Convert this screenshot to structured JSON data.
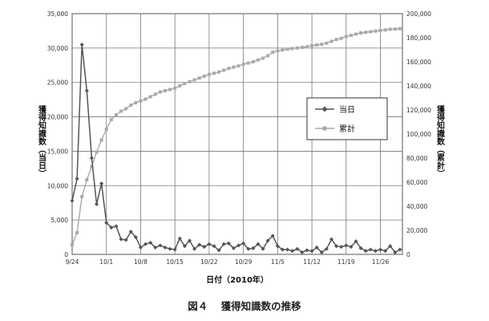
{
  "chart_data": {
    "type": "line",
    "x_tick_labels": [
      "9/24",
      "10/1",
      "10/8",
      "10/15",
      "10/22",
      "10/29",
      "11/5",
      "11/12",
      "11/19",
      "11/26"
    ],
    "xlabel": "日付（2010年）",
    "y_left": {
      "label": "獲得知識数（当日）",
      "range": [
        0,
        35000
      ],
      "tick_labels": [
        "0",
        "5,000",
        "10,000",
        "15,000",
        "20,000",
        "25,000",
        "30,000",
        "35,000"
      ]
    },
    "y_right": {
      "label": "獲得知識数（累計）",
      "range": [
        0,
        200000
      ],
      "tick_labels": [
        "0",
        "20,000",
        "40,000",
        "60,000",
        "80,000",
        "100,000",
        "120,000",
        "140,000",
        "160,000",
        "180,000",
        "200,000"
      ]
    },
    "grid": true,
    "legend_position": "right-center",
    "series": [
      {
        "name": "当日",
        "axis": "left",
        "color": "#555555",
        "marker": "diamond",
        "x": [
          "9/24",
          "9/25",
          "9/26",
          "9/27",
          "9/28",
          "9/29",
          "9/30",
          "10/1",
          "10/2",
          "10/3",
          "10/4",
          "10/5",
          "10/6",
          "10/7",
          "10/8",
          "10/9",
          "10/10",
          "10/11",
          "10/12",
          "10/13",
          "10/14",
          "10/15",
          "10/16",
          "10/17",
          "10/18",
          "10/19",
          "10/20",
          "10/21",
          "10/22",
          "10/23",
          "10/24",
          "10/25",
          "10/26",
          "10/27",
          "10/28",
          "10/29",
          "10/30",
          "10/31",
          "11/1",
          "11/2",
          "11/3",
          "11/4",
          "11/5",
          "11/6",
          "11/7",
          "11/8",
          "11/9",
          "11/10",
          "11/11",
          "11/12",
          "11/13",
          "11/14",
          "11/15",
          "11/16",
          "11/17",
          "11/18",
          "11/19",
          "11/20",
          "11/21",
          "11/22",
          "11/23",
          "11/24",
          "11/25",
          "11/26",
          "11/27",
          "11/28",
          "11/29",
          "11/30"
        ],
        "values": [
          7800,
          11000,
          30500,
          23800,
          14000,
          7300,
          10300,
          4600,
          3900,
          4100,
          2200,
          2100,
          3300,
          2500,
          1000,
          1500,
          1700,
          1000,
          1300,
          1000,
          800,
          700,
          2300,
          1200,
          2000,
          800,
          1400,
          1100,
          1500,
          1200,
          600,
          1500,
          1600,
          900,
          1300,
          1600,
          800,
          900,
          1500,
          800,
          2000,
          2700,
          1200,
          700,
          700,
          500,
          800,
          300,
          600,
          500,
          1000,
          300,
          800,
          2200,
          1200,
          1100,
          1300,
          1100,
          1900,
          900,
          500,
          700,
          500,
          700,
          500,
          1200,
          300,
          700
        ]
      },
      {
        "name": "累計",
        "axis": "right",
        "color": "#aaaaaa",
        "marker": "square",
        "x": [
          "9/24",
          "9/25",
          "9/26",
          "9/27",
          "9/28",
          "9/29",
          "9/30",
          "10/1",
          "10/2",
          "10/3",
          "10/4",
          "10/5",
          "10/6",
          "10/7",
          "10/8",
          "10/9",
          "10/10",
          "10/11",
          "10/12",
          "10/13",
          "10/14",
          "10/15",
          "10/16",
          "10/17",
          "10/18",
          "10/19",
          "10/20",
          "10/21",
          "10/22",
          "10/23",
          "10/24",
          "10/25",
          "10/26",
          "10/27",
          "10/28",
          "10/29",
          "10/30",
          "10/31",
          "11/1",
          "11/2",
          "11/3",
          "11/4",
          "11/5",
          "11/6",
          "11/7",
          "11/8",
          "11/9",
          "11/10",
          "11/11",
          "11/12",
          "11/13",
          "11/14",
          "11/15",
          "11/16",
          "11/17",
          "11/18",
          "11/19",
          "11/20",
          "11/21",
          "11/22",
          "11/23",
          "11/24",
          "11/25",
          "11/26",
          "11/27",
          "11/28",
          "11/29",
          "11/30"
        ],
        "values": [
          8000,
          18000,
          48000,
          62000,
          73000,
          85000,
          95000,
          104000,
          112000,
          116000,
          119000,
          121000,
          124000,
          126000,
          127500,
          129000,
          131000,
          133000,
          135000,
          136000,
          137000,
          138000,
          140000,
          142000,
          143500,
          145000,
          146500,
          148000,
          149500,
          150500,
          151500,
          153000,
          154500,
          155500,
          156500,
          158000,
          159000,
          160000,
          161500,
          163000,
          165000,
          168000,
          169000,
          169800,
          170500,
          171000,
          171500,
          172000,
          172500,
          173500,
          174000,
          174500,
          175500,
          177000,
          178500,
          179500,
          181000,
          182000,
          183000,
          184000,
          184500,
          185000,
          185500,
          186000,
          186500,
          187000,
          187200,
          187500
        ]
      }
    ]
  },
  "caption": {
    "figure_number": "図４",
    "title": "獲得知識数の推移"
  }
}
